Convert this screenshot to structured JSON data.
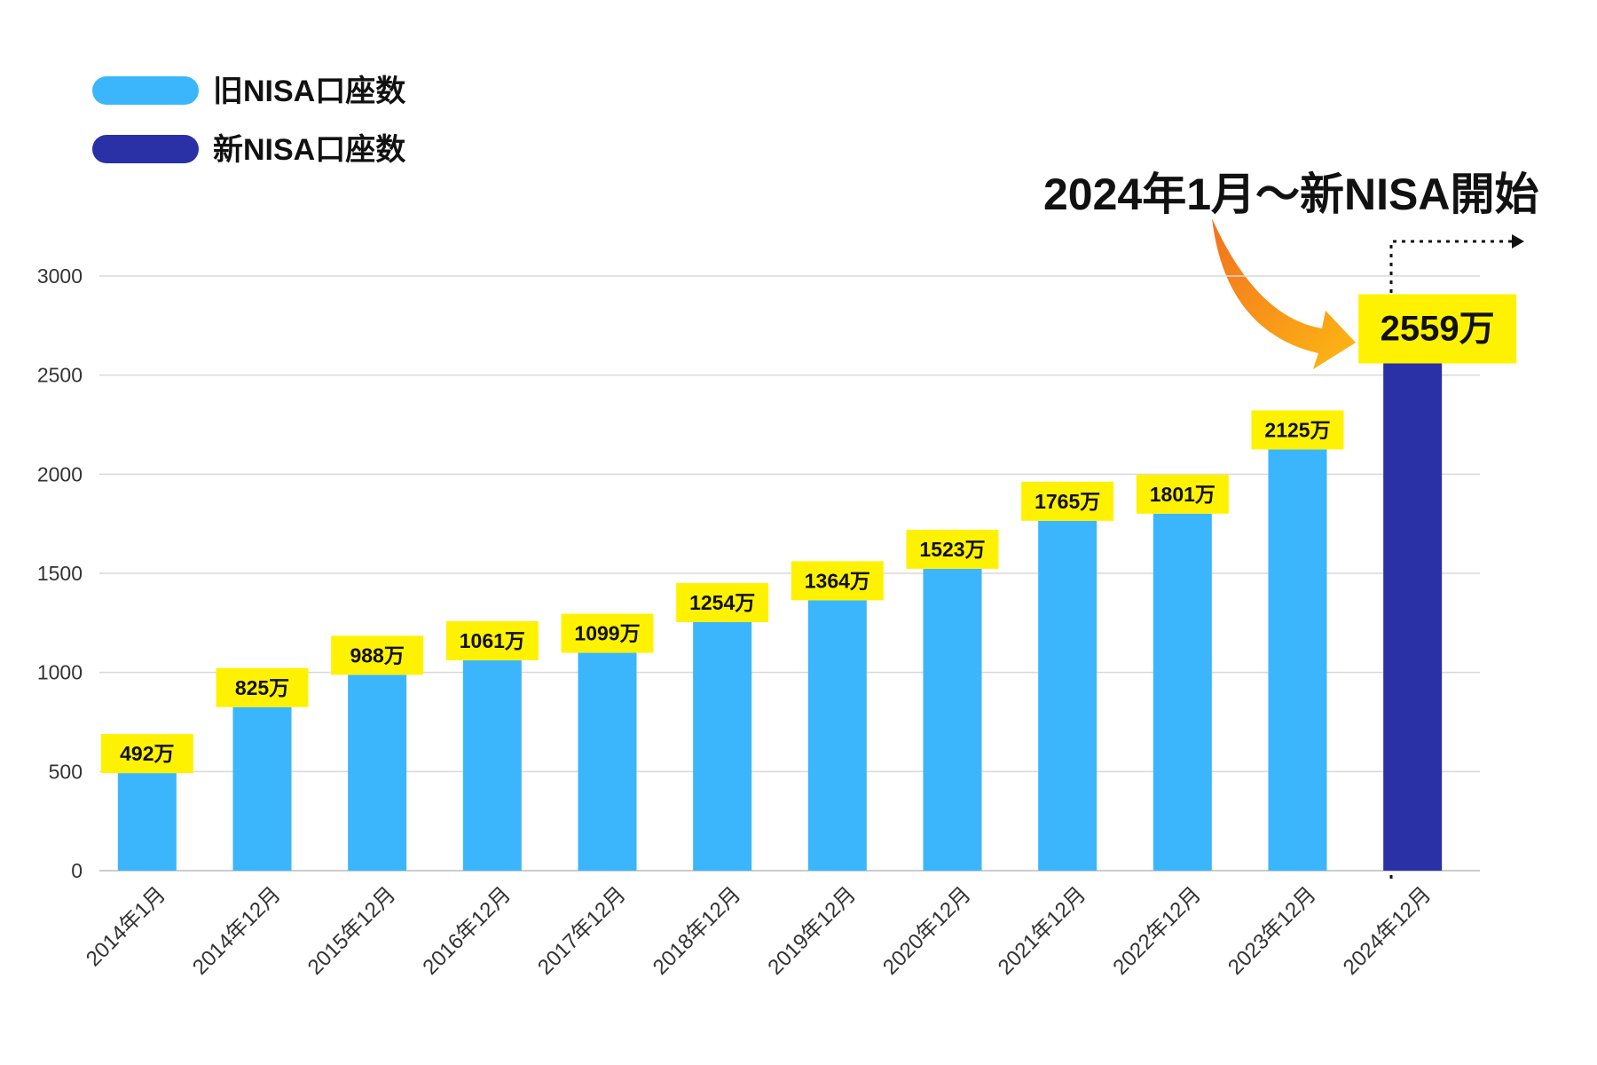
{
  "chart_data": {
    "type": "bar",
    "categories": [
      "2014年1月",
      "2014年12月",
      "2015年12月",
      "2016年12月",
      "2017年12月",
      "2018年12月",
      "2019年12月",
      "2020年12月",
      "2021年12月",
      "2022年12月",
      "2023年12月",
      "2024年12月"
    ],
    "series": [
      {
        "name": "旧NISA口座数",
        "color": "#3bb6fc",
        "values": [
          492,
          825,
          988,
          1061,
          1099,
          1254,
          1364,
          1523,
          1765,
          1801,
          2125,
          null
        ]
      },
      {
        "name": "新NISA口座数",
        "color": "#2a30a6",
        "values": [
          null,
          null,
          null,
          null,
          null,
          null,
          null,
          null,
          null,
          null,
          null,
          2559
        ]
      }
    ],
    "data_labels": [
      "492万",
      "825万",
      "988万",
      "1061万",
      "1099万",
      "1254万",
      "1364万",
      "1523万",
      "1765万",
      "1801万",
      "2125万",
      "2559万"
    ],
    "yticks": [
      "0",
      "500",
      "1000",
      "1500",
      "2000",
      "2500",
      "3000"
    ],
    "ylim": [
      0,
      3000
    ],
    "grid": true,
    "legend": "top-left",
    "label_box_color": "#fff200",
    "annotation": "2024年1月～新NISA開始",
    "arrow_gradient": [
      "#f37020",
      "#fdb913"
    ]
  }
}
